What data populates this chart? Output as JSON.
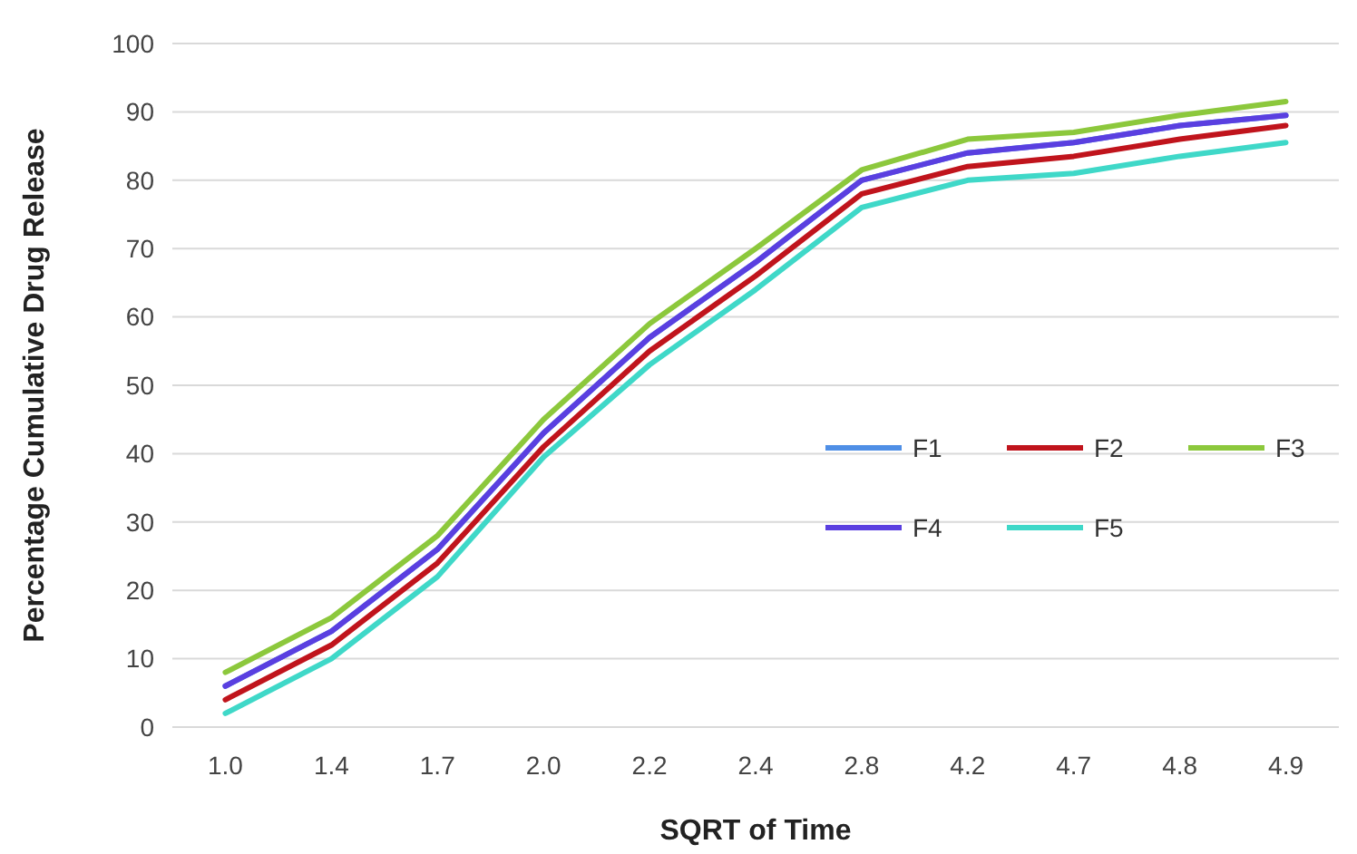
{
  "chart_data": {
    "type": "line",
    "xlabel": "SQRT of Time",
    "ylabel": "Percentage Cumulative Drug Release",
    "categories": [
      "1.0",
      "1.4",
      "1.7",
      "2.0",
      "2.2",
      "2.4",
      "2.8",
      "4.2",
      "4.7",
      "4.8",
      "4.9"
    ],
    "series": [
      {
        "name": "F1",
        "color": "#4f8fe6",
        "values": [
          6,
          14,
          26,
          43,
          57,
          68,
          80,
          84,
          85.5,
          88,
          89.5
        ]
      },
      {
        "name": "F2",
        "color": "#c0141c",
        "values": [
          4,
          12,
          24,
          41,
          55,
          66,
          78,
          82,
          83.5,
          86,
          88
        ]
      },
      {
        "name": "F3",
        "color": "#8cc83c",
        "values": [
          8,
          16,
          28,
          45,
          59,
          70,
          81.5,
          86,
          87,
          89.5,
          91.5
        ]
      },
      {
        "name": "F4",
        "color": "#5a3fe0",
        "values": [
          6,
          14,
          26,
          43,
          57,
          68,
          80,
          84,
          85.5,
          88,
          89.5
        ]
      },
      {
        "name": "F5",
        "color": "#3fd8c8",
        "values": [
          2,
          10,
          22,
          39.5,
          53,
          64,
          76,
          80,
          81,
          83.5,
          85.5
        ]
      }
    ],
    "ylim": [
      0,
      100
    ],
    "yticks": [
      0,
      10,
      20,
      30,
      40,
      50,
      60,
      70,
      80,
      90,
      100
    ],
    "grid": "y",
    "legend": "right",
    "line_style": "solid",
    "marker": "none"
  }
}
